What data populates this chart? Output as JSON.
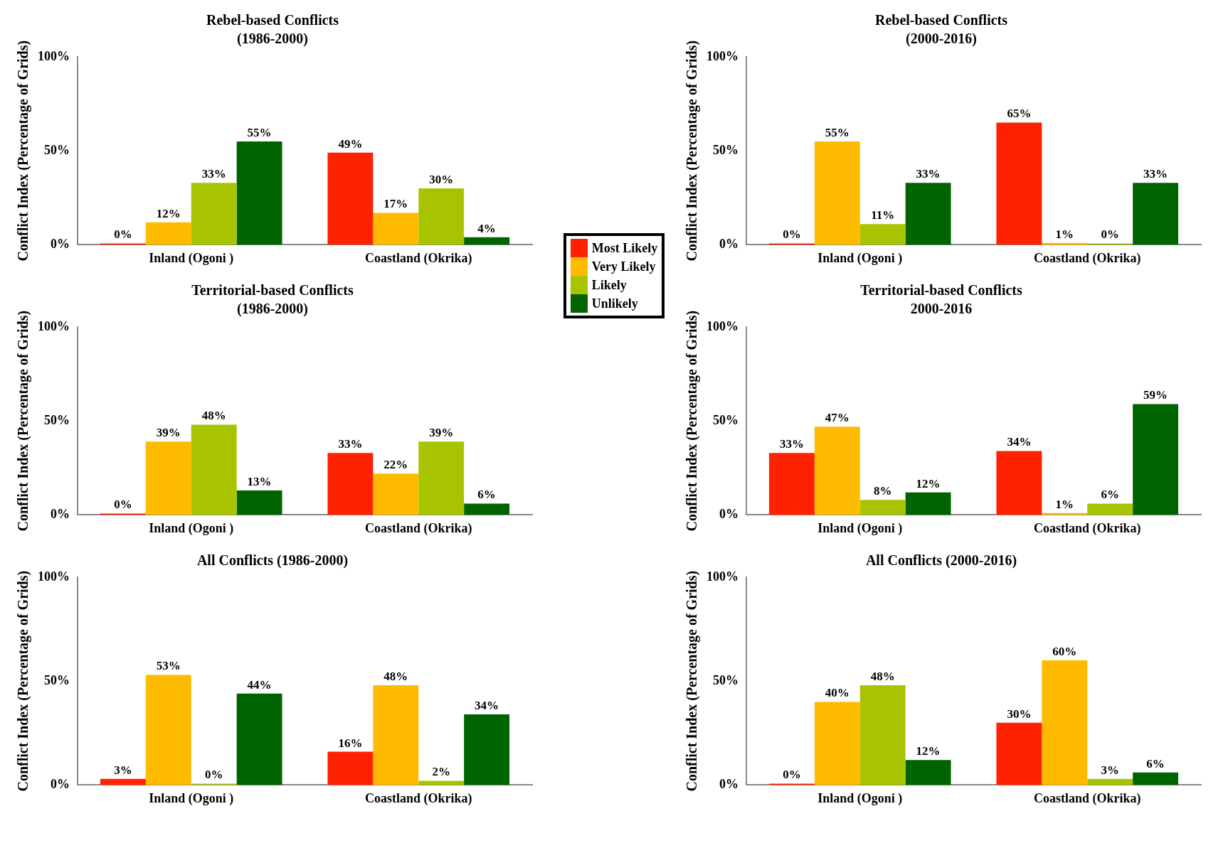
{
  "chart_data": [
    {
      "type": "bar",
      "title": "Rebel-based Conflicts",
      "subtitle": "(1986-2000)",
      "ylabel": "Conflict Index (Percentage of Grids)",
      "categories": [
        "Inland (Ogoni )",
        "Coastland (Okrika)"
      ],
      "ylim": [
        0,
        100
      ],
      "yticks": [
        {
          "value": 0,
          "label": "0%"
        },
        {
          "value": 50,
          "label": "50%"
        },
        {
          "value": 100,
          "label": "100%"
        }
      ],
      "legend": "right",
      "series": [
        {
          "name": "Most Likely",
          "color": "#ff2200",
          "values": [
            0,
            49
          ],
          "value_labels": [
            "0%",
            "49%"
          ]
        },
        {
          "name": "Very Likely",
          "color": "#ffbb00",
          "values": [
            12,
            17
          ],
          "value_labels": [
            "12%",
            "17%"
          ]
        },
        {
          "name": "Likely",
          "color": "#a8c400",
          "values": [
            33,
            30
          ],
          "value_labels": [
            "33%",
            "30%"
          ]
        },
        {
          "name": "Unlikely",
          "color": "#006400",
          "values": [
            55,
            4
          ],
          "value_labels": [
            "55%",
            "4%"
          ]
        }
      ]
    },
    {
      "type": "bar",
      "title": "Rebel-based Conflicts",
      "subtitle": "(2000-2016)",
      "ylabel": "Conflict Index (Percentage of Grids)",
      "categories": [
        "Inland (Ogoni )",
        "Coastland (Okrika)"
      ],
      "ylim": [
        0,
        100
      ],
      "yticks": [
        {
          "value": 0,
          "label": "0%"
        },
        {
          "value": 50,
          "label": "50%"
        },
        {
          "value": 100,
          "label": "100%"
        }
      ],
      "series": [
        {
          "color": "#ff2200",
          "values": [
            0,
            65
          ],
          "value_labels": [
            "0%",
            "65%"
          ]
        },
        {
          "color": "#ffbb00",
          "values": [
            55,
            1
          ],
          "value_labels": [
            "55%",
            "1%"
          ]
        },
        {
          "color": "#a8c400",
          "values": [
            11,
            0
          ],
          "value_labels": [
            "11%",
            "0%"
          ]
        },
        {
          "color": "#006400",
          "values": [
            33,
            33
          ],
          "value_labels": [
            "33%",
            "33%"
          ]
        }
      ]
    },
    {
      "type": "bar",
      "title": "Territorial-based Conflicts",
      "subtitle": "(1986-2000)",
      "ylabel": "Conflict Index (Percentage of Grids)",
      "categories": [
        "Inland (Ogoni )",
        "Coastland (Okrika)"
      ],
      "ylim": [
        0,
        100
      ],
      "yticks": [
        {
          "value": 0,
          "label": "0%"
        },
        {
          "value": 50,
          "label": "50%"
        },
        {
          "value": 100,
          "label": "100%"
        }
      ],
      "series": [
        {
          "color": "#ff2200",
          "values": [
            0,
            33
          ],
          "value_labels": [
            "0%",
            "33%"
          ]
        },
        {
          "color": "#ffbb00",
          "values": [
            39,
            22
          ],
          "value_labels": [
            "39%",
            "22%"
          ]
        },
        {
          "color": "#a8c400",
          "values": [
            48,
            39
          ],
          "value_labels": [
            "48%",
            "39%"
          ]
        },
        {
          "color": "#006400",
          "values": [
            13,
            6
          ],
          "value_labels": [
            "13%",
            "6%"
          ]
        }
      ]
    },
    {
      "type": "bar",
      "title": "Territorial-based Conflicts",
      "subtitle": "2000-2016",
      "ylabel": "Conflict Index (Percentage of Grids)",
      "categories": [
        "Inland (Ogoni )",
        "Coastland (Okrika)"
      ],
      "ylim": [
        0,
        100
      ],
      "yticks": [
        {
          "value": 0,
          "label": "0%"
        },
        {
          "value": 50,
          "label": "50%"
        },
        {
          "value": 100,
          "label": "100%"
        }
      ],
      "series": [
        {
          "color": "#ff2200",
          "values": [
            33,
            34
          ],
          "value_labels": [
            "33%",
            "34%"
          ]
        },
        {
          "color": "#ffbb00",
          "values": [
            47,
            1
          ],
          "value_labels": [
            "47%",
            "1%"
          ]
        },
        {
          "color": "#a8c400",
          "values": [
            8,
            6
          ],
          "value_labels": [
            "8%",
            "6%"
          ]
        },
        {
          "color": "#006400",
          "values": [
            12,
            59
          ],
          "value_labels": [
            "12%",
            "59%"
          ]
        }
      ]
    },
    {
      "type": "bar",
      "title": "All Conflicts (1986-2000)",
      "ylabel": "Conflict Index (Percentage of Grids)",
      "categories": [
        "Inland (Ogoni )",
        "Coastland (Okrika)"
      ],
      "ylim": [
        0,
        100
      ],
      "yticks": [
        {
          "value": 0,
          "label": "0%"
        },
        {
          "value": 50,
          "label": "50%"
        },
        {
          "value": 100,
          "label": "100%"
        }
      ],
      "series": [
        {
          "color": "#ff2200",
          "values": [
            3,
            16
          ],
          "value_labels": [
            "3%",
            "16%"
          ]
        },
        {
          "color": "#ffbb00",
          "values": [
            53,
            48
          ],
          "value_labels": [
            "53%",
            "48%"
          ]
        },
        {
          "color": "#a8c400",
          "values": [
            0,
            2
          ],
          "value_labels": [
            "0%",
            "2%"
          ]
        },
        {
          "color": "#006400",
          "values": [
            44,
            34
          ],
          "value_labels": [
            "44%",
            "34%"
          ]
        }
      ]
    },
    {
      "type": "bar",
      "title": "All Conflicts (2000-2016)",
      "ylabel": "Conflict Index (Percentage of Grids)",
      "categories": [
        "Inland (Ogoni )",
        "Coastland (Okrika)"
      ],
      "ylim": [
        0,
        100
      ],
      "yticks": [
        {
          "value": 0,
          "label": "0%"
        },
        {
          "value": 50,
          "label": "50%"
        },
        {
          "value": 100,
          "label": "100%"
        }
      ],
      "series": [
        {
          "color": "#ff2200",
          "values": [
            0,
            30
          ],
          "value_labels": [
            "0%",
            "30%"
          ]
        },
        {
          "color": "#ffbb00",
          "values": [
            40,
            60
          ],
          "value_labels": [
            "40%",
            "60%"
          ]
        },
        {
          "color": "#a8c400",
          "values": [
            48,
            3
          ],
          "value_labels": [
            "48%",
            "3%"
          ]
        },
        {
          "color": "#006400",
          "values": [
            12,
            6
          ],
          "value_labels": [
            "12%",
            "6%"
          ]
        }
      ]
    }
  ]
}
